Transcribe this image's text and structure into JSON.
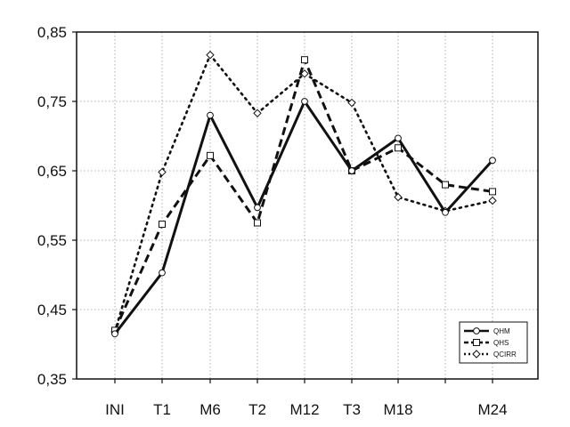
{
  "chart_data": {
    "type": "line",
    "title": "",
    "xlabel": "",
    "ylabel": "",
    "categories": [
      "INI",
      "T1",
      "M6",
      "T2",
      "M12",
      "T3",
      "M18",
      "",
      "M24"
    ],
    "x_tick_labels": [
      "INI",
      "T1",
      "M6",
      "T2",
      "M12",
      "T3",
      "M18",
      "M24"
    ],
    "ylim": [
      0.35,
      0.85
    ],
    "y_ticks": [
      0.35,
      0.45,
      0.55,
      0.65,
      0.75,
      0.85
    ],
    "y_tick_labels": [
      "0,35",
      "0,45",
      "0,55",
      "0,65",
      "0,75",
      "0,85"
    ],
    "grid": true,
    "legend_position": "bottom-right",
    "series": [
      {
        "name": "QHM",
        "values": [
          0.415,
          0.503,
          0.73,
          0.597,
          0.75,
          0.65,
          0.697,
          0.59,
          0.665
        ],
        "line_style": "solid",
        "marker": "circle",
        "color": "#111111"
      },
      {
        "name": "QHS",
        "values": [
          0.42,
          0.573,
          0.672,
          0.575,
          0.81,
          0.65,
          0.683,
          0.63,
          0.62
        ],
        "line_style": "dashed",
        "marker": "square",
        "color": "#111111"
      },
      {
        "name": "QCIRR",
        "values": [
          0.418,
          0.648,
          0.817,
          0.733,
          0.79,
          0.748,
          0.612,
          0.592,
          0.607
        ],
        "line_style": "dotted",
        "marker": "diamond",
        "color": "#111111"
      }
    ]
  }
}
